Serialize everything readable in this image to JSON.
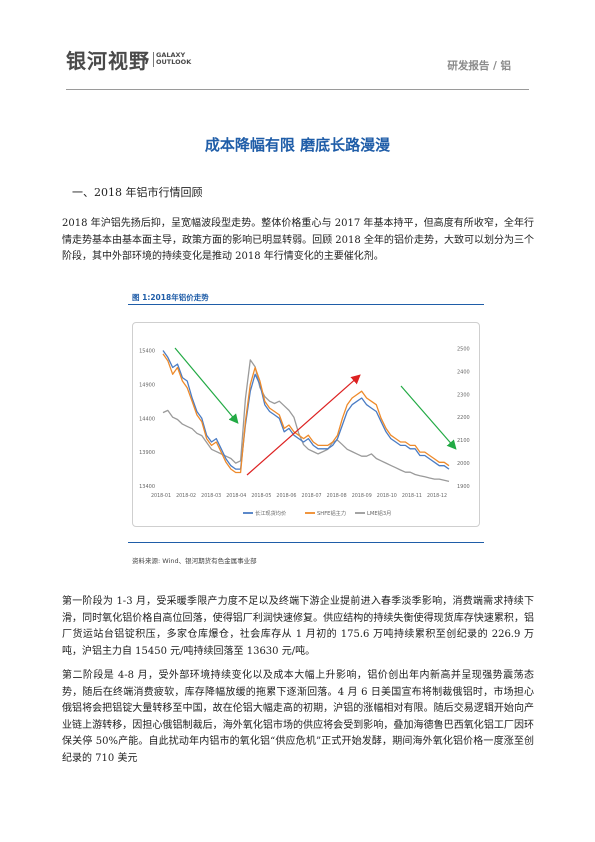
{
  "header": {
    "logo_cn": "银河视野",
    "logo_en_line1": "GALAXY",
    "logo_en_line2": "OUTLOOK",
    "report_tag": "研发报告 / 铝"
  },
  "title": "成本降幅有限 磨底长路漫漫",
  "section_heading": "一、2018 年铝市行情回顾",
  "paragraphs": {
    "p1": "2018 年沪铝先扬后抑，呈宽幅波段型走势。整体价格重心与 2017 年基本持平，但高度有所收窄，全年行情走势基本由基本面主导，政策方面的影响已明显转弱。回顾 2018 全年的铝价走势，大致可以划分为三个阶段，其中外部环境的持续变化是推动 2018 年行情变化的主要催化剂。",
    "p2": "第一阶段为 1-3 月，受采暖季限产力度不足以及终端下游企业提前进入春季淡季影响，消费端需求持续下滑，同时氧化铝价格自高位回落，使得铝厂利润快速修复。供应结构的持续失衡使得现货库存快速累积，铝厂货运站台铝锭积压，多家仓库爆仓，社会库存从 1 月初的 175.6 万吨持续累积至创纪录的 226.9 万吨，沪铝主力自 15450 元/吨持续回落至 13630 元/吨。",
    "p3": "第二阶段是 4-8 月，受外部环境持续变化以及成本大幅上升影响，铝价创出年内新高并呈现强势震荡态势，随后在终端消费疲软，库存降幅放缓的拖累下逐渐回落。4 月 6 日美国宣布将制裁俄铝时，市场担心俄铝将会把铝锭大量转移至中国，故在伦铝大幅走高的初期，沪铝的涨幅相对有限。随后交易逻辑开始向产业链上游转移，因担心俄铝制裁后，海外氧化铝市场的供应将会受到影响，叠加海德鲁巴西氧化铝工厂因环保关停 50%产能。自此扰动年内铝市的氧化铝“供应危机”正式开始发酵，期间海外氧化铝价格一度涨至创纪录的 710 美元"
  },
  "figure": {
    "title": "图 1:2018年铝价走势",
    "source": "资料来源: Wind、银河期货有色金属事业部"
  },
  "chart_data": {
    "type": "line",
    "x_ticks": [
      "2018-01",
      "2018-02",
      "2018-03",
      "2018-04",
      "2018-05",
      "2018-06",
      "2018-07",
      "2018-08",
      "2018-09",
      "2018-10",
      "2018-11",
      "2018-12"
    ],
    "left_axis": {
      "ticks": [
        "13400",
        "13900",
        "14400",
        "14900",
        "15400"
      ],
      "ylim": [
        13400,
        15600
      ]
    },
    "right_axis": {
      "ticks": [
        "1900",
        "2000",
        "2100",
        "2200",
        "2300",
        "2400",
        "2500"
      ],
      "ylim": [
        1900,
        2550
      ]
    },
    "series": [
      {
        "name": "长江现货均价",
        "axis": "left",
        "color": "#4a7cc4",
        "values": [
          15400,
          15300,
          15150,
          15200,
          15000,
          14950,
          14700,
          14500,
          14400,
          14150,
          14050,
          14100,
          13950,
          13800,
          13700,
          13650,
          13650,
          14300,
          14800,
          15050,
          14900,
          14600,
          14500,
          14450,
          14400,
          14200,
          14250,
          14150,
          14100,
          14050,
          14100,
          14000,
          13950,
          13950,
          13950,
          14000,
          14100,
          14300,
          14500,
          14600,
          14650,
          14700,
          14600,
          14550,
          14500,
          14350,
          14200,
          14100,
          14050,
          14000,
          14000,
          13950,
          13950,
          13850,
          13850,
          13800,
          13750,
          13700,
          13700,
          13650
        ]
      },
      {
        "name": "SHFE铝主力",
        "axis": "left",
        "color": "#ee8a2a",
        "values": [
          15350,
          15250,
          15050,
          15150,
          14950,
          14850,
          14650,
          14450,
          14350,
          14100,
          14000,
          14050,
          13900,
          13750,
          13650,
          13600,
          13600,
          14350,
          14900,
          15150,
          14950,
          14650,
          14550,
          14500,
          14450,
          14250,
          14300,
          14200,
          14150,
          14100,
          14150,
          14050,
          14000,
          14000,
          14000,
          14050,
          14150,
          14400,
          14600,
          14700,
          14750,
          14800,
          14700,
          14650,
          14600,
          14400,
          14250,
          14150,
          14100,
          14050,
          14050,
          14000,
          14000,
          13900,
          13900,
          13850,
          13800,
          13750,
          13750,
          13700
        ]
      },
      {
        "name": "LME铝3月",
        "axis": "right",
        "color": "#9a9a9a",
        "values": [
          2220,
          2230,
          2200,
          2190,
          2170,
          2160,
          2150,
          2130,
          2120,
          2090,
          2060,
          2050,
          2040,
          2030,
          2020,
          2000,
          2010,
          2280,
          2450,
          2420,
          2330,
          2290,
          2270,
          2260,
          2270,
          2250,
          2230,
          2200,
          2130,
          2080,
          2060,
          2050,
          2040,
          2050,
          2060,
          2090,
          2100,
          2080,
          2060,
          2050,
          2040,
          2030,
          2030,
          2040,
          2020,
          2010,
          2000,
          1990,
          1980,
          1970,
          1960,
          1960,
          1950,
          1945,
          1940,
          1935,
          1930,
          1930,
          1925,
          1920
        ]
      }
    ],
    "annotations": [
      "trend arrow down (Jan-Mar)",
      "trend arrow up (Apr-Aug)",
      "trend arrow down (Sep-Dec)"
    ],
    "legend_position": "bottom",
    "grid": false
  }
}
